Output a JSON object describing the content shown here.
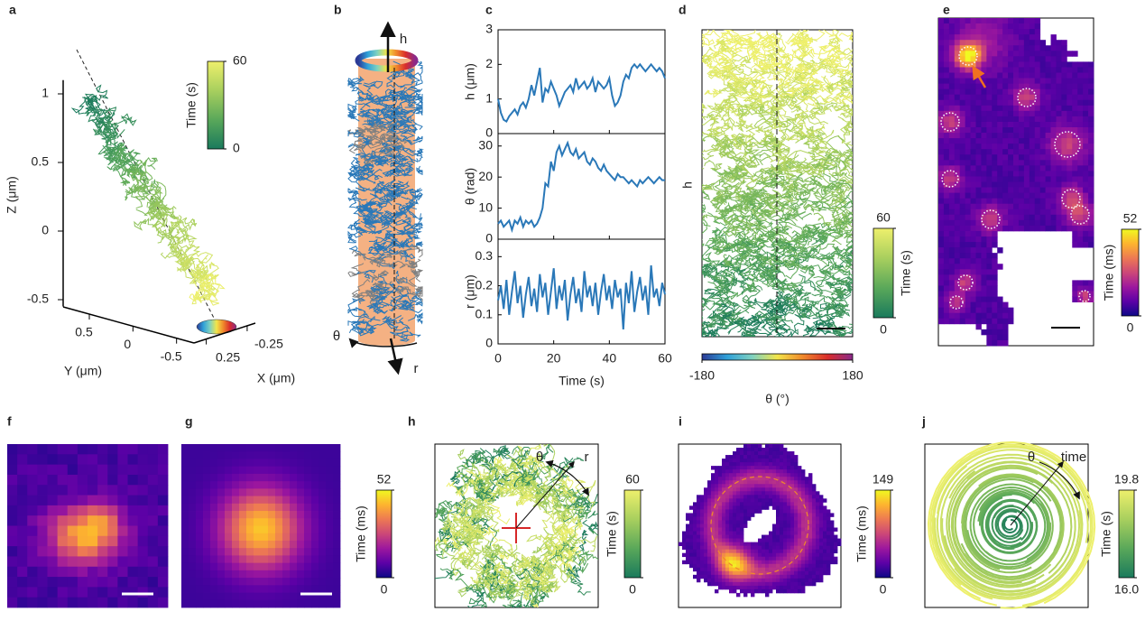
{
  "chart_data": [
    {
      "label": "a",
      "type": "trajectory3d",
      "zlabel": "Z (μm)",
      "ylabel": "Y (μm)",
      "xlabel": "X (μm)",
      "zlim": [
        -0.55,
        1.1
      ],
      "zticks": [
        -0.5,
        0,
        0.5,
        1
      ],
      "ylim": [
        0.8,
        -0.7
      ],
      "yticks": [
        0.5,
        0,
        -0.5
      ],
      "xlim": [
        0.4,
        -0.35
      ],
      "xticks": [
        0.25,
        -0.25
      ],
      "colorbars": [
        {
          "label": "Time (s)",
          "lim": [
            0,
            60
          ],
          "ticks": [
            0,
            60
          ],
          "colors": [
            "#1a7a5c",
            "#5aa85a",
            "#a8cf5e",
            "#eef06c"
          ]
        }
      ]
    },
    {
      "label": "b",
      "type": "cylinder",
      "annotations": [
        "h",
        "θ",
        "r"
      ],
      "colors": [
        "#f4b183",
        "#2a78b8",
        "#808080"
      ]
    },
    {
      "label": "c",
      "type": "line",
      "xlabel": "Time (s)",
      "xlim": [
        0,
        60
      ],
      "xticks": [
        0,
        20,
        40,
        60
      ],
      "color": "#2a78b8",
      "x": [
        0,
        1,
        2,
        3,
        4,
        5,
        6,
        7,
        8,
        9,
        10,
        11,
        12,
        13,
        14,
        15,
        16,
        17,
        18,
        19,
        20,
        21,
        22,
        23,
        24,
        25,
        26,
        27,
        28,
        29,
        30,
        31,
        32,
        33,
        34,
        35,
        36,
        37,
        38,
        39,
        40,
        41,
        42,
        43,
        44,
        45,
        46,
        47,
        48,
        49,
        50,
        51,
        52,
        53,
        54,
        55,
        56,
        57,
        58,
        59,
        60
      ],
      "subplots": [
        {
          "ylabel": "h (μm)",
          "ylim": [
            0,
            3
          ],
          "yticks": [
            0,
            1,
            2,
            3
          ],
          "values": [
            1.0,
            0.6,
            0.4,
            0.35,
            0.5,
            0.6,
            0.7,
            0.55,
            0.8,
            0.9,
            0.75,
            1.0,
            1.4,
            1.1,
            1.5,
            1.9,
            0.9,
            1.3,
            1.2,
            1.5,
            1.3,
            1.1,
            0.8,
            1.0,
            1.2,
            1.3,
            1.4,
            1.2,
            1.6,
            1.3,
            1.4,
            1.5,
            1.3,
            1.4,
            1.6,
            1.2,
            1.5,
            1.4,
            1.3,
            1.4,
            1.6,
            1.1,
            0.8,
            0.9,
            1.1,
            1.5,
            1.7,
            1.6,
            1.9,
            2.0,
            1.9,
            2.0,
            1.9,
            1.8,
            1.9,
            2.0,
            1.9,
            1.8,
            1.9,
            1.8,
            1.6
          ]
        },
        {
          "ylabel": "θ (rad)",
          "ylim": [
            0,
            34
          ],
          "yticks": [
            0,
            10,
            20,
            30
          ],
          "values": [
            5,
            6,
            4,
            5,
            6,
            3,
            6,
            5,
            7,
            4,
            6,
            5,
            6,
            4,
            5,
            7,
            10,
            18,
            17,
            25,
            22,
            28,
            30,
            27,
            29,
            31,
            28,
            27,
            29,
            26,
            27,
            28,
            25,
            24,
            26,
            25,
            23,
            22,
            24,
            22,
            21,
            20,
            19,
            21,
            20,
            20,
            19,
            18,
            19,
            18,
            17,
            19,
            18,
            19,
            20,
            19,
            18,
            19,
            20,
            19,
            19
          ]
        },
        {
          "ylabel": "r (μm)",
          "ylim": [
            0,
            0.36
          ],
          "yticks": [
            0,
            0.1,
            0.2,
            0.3
          ],
          "values": [
            0.15,
            0.2,
            0.12,
            0.22,
            0.1,
            0.18,
            0.25,
            0.14,
            0.2,
            0.09,
            0.17,
            0.23,
            0.13,
            0.19,
            0.11,
            0.24,
            0.16,
            0.21,
            0.1,
            0.18,
            0.26,
            0.12,
            0.2,
            0.15,
            0.22,
            0.08,
            0.17,
            0.23,
            0.14,
            0.19,
            0.11,
            0.25,
            0.16,
            0.2,
            0.13,
            0.21,
            0.1,
            0.18,
            0.24,
            0.15,
            0.2,
            0.12,
            0.22,
            0.16,
            0.19,
            0.05,
            0.21,
            0.14,
            0.25,
            0.11,
            0.18,
            0.23,
            0.15,
            0.2,
            0.1,
            0.27,
            0.16,
            0.19,
            0.13,
            0.21,
            0.17
          ]
        }
      ]
    },
    {
      "label": "d",
      "type": "trajectory",
      "ylabel": "h",
      "colorbars": [
        {
          "label": "θ (°)",
          "lim": [
            -180,
            180
          ],
          "ticks": [
            -180,
            180
          ],
          "colors": [
            "#2b3a96",
            "#2fa0d8",
            "#7fd1c0",
            "#f2e54a",
            "#f08a2b",
            "#d92d2b",
            "#8a2a8a"
          ]
        },
        {
          "label": "Time (s)",
          "lim": [
            0,
            60
          ],
          "ticks": [
            0,
            60
          ],
          "colors": [
            "#1a7a5c",
            "#5aa85a",
            "#a8cf5e",
            "#eef06c"
          ]
        }
      ]
    },
    {
      "label": "e",
      "type": "heatmap",
      "colorbars": [
        {
          "label": "Time (ms)",
          "lim": [
            0,
            52
          ],
          "ticks": [
            0,
            52
          ],
          "colors": [
            "#0d0887",
            "#5c01a6",
            "#9c179e",
            "#cc4778",
            "#ed7953",
            "#fdb42f",
            "#f0f921"
          ]
        }
      ]
    },
    {
      "label": "f",
      "type": "heatmap"
    },
    {
      "label": "g",
      "type": "heatmap",
      "colorbars": [
        {
          "label": "Time (ms)",
          "lim": [
            0,
            52
          ],
          "ticks": [
            0,
            52
          ],
          "colors": [
            "#0d0887",
            "#5c01a6",
            "#9c179e",
            "#cc4778",
            "#ed7953",
            "#fdb42f",
            "#f0f921"
          ]
        }
      ]
    },
    {
      "label": "h",
      "type": "trajectory",
      "annotations": [
        "θ",
        "r"
      ],
      "colorbars": [
        {
          "label": "Time (s)",
          "lim": [
            0,
            60
          ],
          "ticks": [
            0,
            60
          ],
          "colors": [
            "#1a7a5c",
            "#5aa85a",
            "#a8cf5e",
            "#eef06c"
          ]
        }
      ]
    },
    {
      "label": "i",
      "type": "heatmap",
      "colorbars": [
        {
          "label": "Time (ms)",
          "lim": [
            0,
            149
          ],
          "ticks": [
            0,
            149
          ],
          "colors": [
            "#0d0887",
            "#5c01a6",
            "#9c179e",
            "#cc4778",
            "#ed7953",
            "#fdb42f",
            "#f0f921"
          ]
        }
      ]
    },
    {
      "label": "j",
      "type": "spiral",
      "annotations": [
        "θ",
        "time"
      ],
      "colorbars": [
        {
          "label": "Time (s)",
          "lim": [
            16,
            19.8
          ],
          "ticks": [
            {
              "value": 16,
              "label": "16.0"
            },
            19.8
          ],
          "colors": [
            "#1a7a5c",
            "#5aa85a",
            "#a8cf5e",
            "#eef06c"
          ]
        }
      ]
    }
  ]
}
